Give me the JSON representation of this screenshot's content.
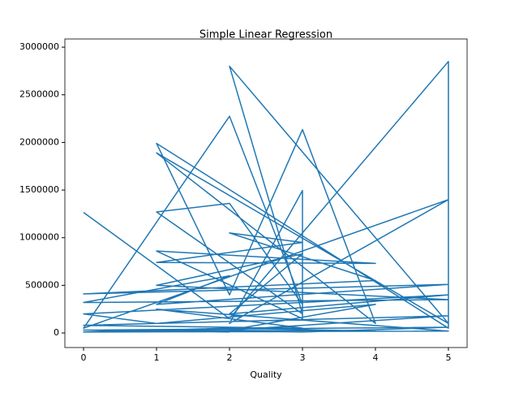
{
  "chart_data": {
    "type": "line",
    "title": "Simple Linear Regression",
    "x_label": "Quality",
    "x": [
      0,
      2,
      5,
      5,
      1,
      2,
      3,
      4,
      1,
      5,
      2,
      3,
      1,
      2,
      3,
      2,
      0,
      5,
      2,
      3,
      3,
      1,
      4,
      1,
      3,
      2,
      4,
      0,
      5,
      1,
      2,
      0,
      5,
      1,
      3,
      2,
      5,
      0,
      1,
      4,
      2,
      5,
      0,
      3,
      1,
      5,
      0,
      2,
      4,
      1,
      3,
      5,
      0,
      2
    ],
    "series": [
      {
        "color": "#1f77b4",
        "values": [
          1265000,
          150000,
          2850000,
          50000,
          1990000,
          400000,
          2135000,
          100000,
          1890000,
          100000,
          2800000,
          200000,
          1270000,
          1360000,
          300000,
          2275000,
          50000,
          1400000,
          100000,
          1495000,
          150000,
          860000,
          730000,
          740000,
          950000,
          1050000,
          550000,
          410000,
          510000,
          300000,
          600000,
          320000,
          350000,
          500000,
          830000,
          200000,
          400000,
          200000,
          100000,
          300000,
          30000,
          180000,
          80000,
          50000,
          250000,
          20000,
          10000,
          50000,
          20000,
          30000,
          10000,
          60000,
          30000,
          10000
        ]
      }
    ],
    "xlim": [
      -0.256,
      5.256
    ],
    "xticks": [
      0,
      1,
      2,
      3,
      4,
      5
    ],
    "ylim": [
      -153000,
      3086000
    ],
    "yticks": [
      0,
      500000,
      1000000,
      1500000,
      2000000,
      2500000,
      3000000
    ],
    "grid": false
  }
}
